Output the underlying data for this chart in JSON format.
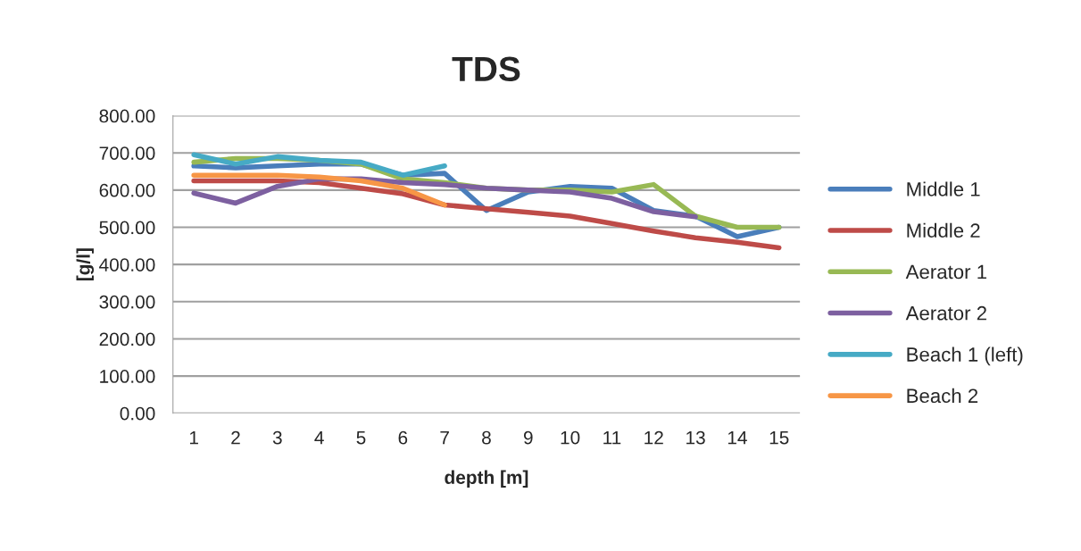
{
  "chart_data": {
    "type": "line",
    "title": "TDS",
    "xlabel": "depth [m]",
    "ylabel": "[g/l]",
    "categories": [
      "1",
      "2",
      "3",
      "4",
      "5",
      "6",
      "7",
      "8",
      "9",
      "10",
      "11",
      "12",
      "13",
      "14",
      "15"
    ],
    "ylim": [
      0,
      800
    ],
    "yticks": [
      {
        "value": 0,
        "label": "0.00"
      },
      {
        "value": 100,
        "label": "100.00"
      },
      {
        "value": 200,
        "label": "200.00"
      },
      {
        "value": 300,
        "label": "300.00"
      },
      {
        "value": 400,
        "label": "400.00"
      },
      {
        "value": 500,
        "label": "500.00"
      },
      {
        "value": 600,
        "label": "600.00"
      },
      {
        "value": 700,
        "label": "700.00"
      },
      {
        "value": 800,
        "label": "800.00"
      }
    ],
    "grid": "y",
    "legend": "right",
    "marker": "none",
    "line_style": "solid",
    "series": [
      {
        "name": "Middle 1",
        "color": "#4a7ebb",
        "values": [
          665,
          660,
          665,
          670,
          670,
          640,
          645,
          545,
          595,
          610,
          605,
          545,
          530,
          475,
          500
        ]
      },
      {
        "name": "Middle 2",
        "color": "#be4b48",
        "values": [
          625,
          625,
          625,
          620,
          605,
          590,
          560,
          550,
          540,
          530,
          510,
          490,
          472,
          460,
          445
        ]
      },
      {
        "name": "Aerator 1",
        "color": "#98b954",
        "values": [
          675,
          685,
          685,
          680,
          670,
          630,
          620,
          605,
          600,
          600,
          595,
          615,
          530,
          500,
          500
        ]
      },
      {
        "name": "Aerator 2",
        "color": "#7d60a0",
        "values": [
          592,
          565,
          610,
          630,
          630,
          620,
          615,
          605,
          600,
          595,
          578,
          542,
          528,
          null,
          null
        ]
      },
      {
        "name": "Beach 1 (left)",
        "color": "#46aac5",
        "values": [
          695,
          670,
          690,
          680,
          675,
          640,
          665,
          null,
          null,
          null,
          null,
          null,
          null,
          null,
          null
        ]
      },
      {
        "name": "Beach 2",
        "color": "#f79646",
        "values": [
          640,
          640,
          640,
          635,
          625,
          605,
          560,
          null,
          null,
          null,
          null,
          null,
          null,
          null,
          null
        ]
      }
    ]
  }
}
